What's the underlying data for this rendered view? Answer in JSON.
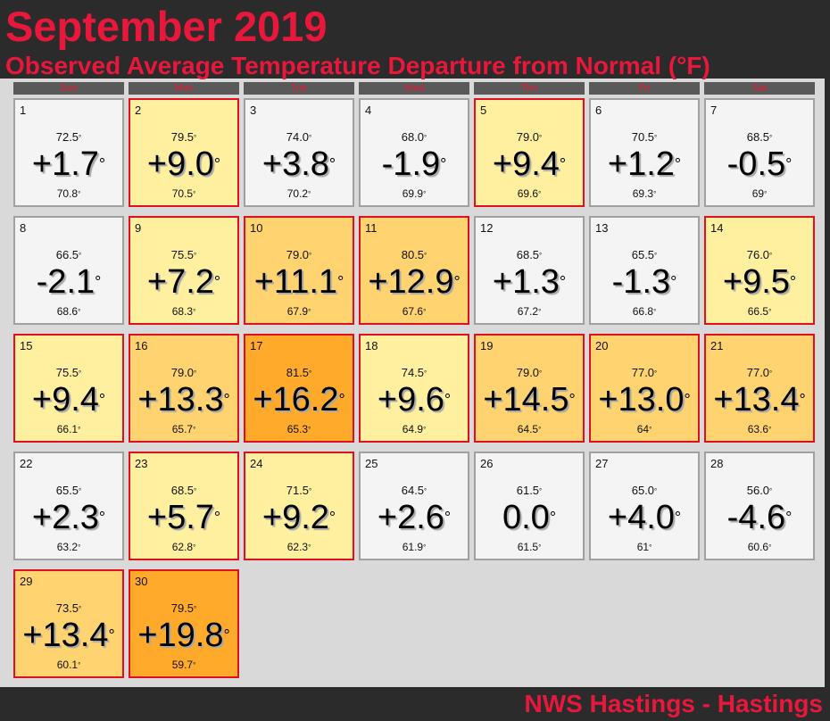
{
  "header": {
    "title": "September 2019",
    "subtitle": "Observed Average Temperature Departure from Normal (°F)"
  },
  "degree_symbol": "°",
  "weekdays": [
    "Sun",
    "Mon",
    "Tue",
    "Wed",
    "Thu",
    "Fri",
    "Sat"
  ],
  "days": [
    {
      "day": "1",
      "observed": "72.5",
      "departure": "+1.7",
      "normal": "70.8",
      "color": "#f4f4f4",
      "border": "#a0a0a0"
    },
    {
      "day": "2",
      "observed": "79.5",
      "departure": "+9.0",
      "normal": "70.5",
      "color": "#fff0a0",
      "border": "#e01020"
    },
    {
      "day": "3",
      "observed": "74.0",
      "departure": "+3.8",
      "normal": "70.2",
      "color": "#f4f4f4",
      "border": "#a0a0a0"
    },
    {
      "day": "4",
      "observed": "68.0",
      "departure": "-1.9",
      "normal": "69.9",
      "color": "#f4f4f4",
      "border": "#a0a0a0"
    },
    {
      "day": "5",
      "observed": "79.0",
      "departure": "+9.4",
      "normal": "69.6",
      "color": "#fff0a0",
      "border": "#e01020"
    },
    {
      "day": "6",
      "observed": "70.5",
      "departure": "+1.2",
      "normal": "69.3",
      "color": "#f4f4f4",
      "border": "#a0a0a0"
    },
    {
      "day": "7",
      "observed": "68.5",
      "departure": "-0.5",
      "normal": "69",
      "color": "#f4f4f4",
      "border": "#a0a0a0"
    },
    {
      "day": "8",
      "observed": "66.5",
      "departure": "-2.1",
      "normal": "68.6",
      "color": "#f4f4f4",
      "border": "#a0a0a0"
    },
    {
      "day": "9",
      "observed": "75.5",
      "departure": "+7.2",
      "normal": "68.3",
      "color": "#fff0a0",
      "border": "#e01020"
    },
    {
      "day": "10",
      "observed": "79.0",
      "departure": "+11.1",
      "normal": "67.9",
      "color": "#ffd470",
      "border": "#e01020"
    },
    {
      "day": "11",
      "observed": "80.5",
      "departure": "+12.9",
      "normal": "67.6",
      "color": "#ffd470",
      "border": "#e01020"
    },
    {
      "day": "12",
      "observed": "68.5",
      "departure": "+1.3",
      "normal": "67.2",
      "color": "#f4f4f4",
      "border": "#a0a0a0"
    },
    {
      "day": "13",
      "observed": "65.5",
      "departure": "-1.3",
      "normal": "66.8",
      "color": "#f4f4f4",
      "border": "#a0a0a0"
    },
    {
      "day": "14",
      "observed": "76.0",
      "departure": "+9.5",
      "normal": "66.5",
      "color": "#fff0a0",
      "border": "#e01020"
    },
    {
      "day": "15",
      "observed": "75.5",
      "departure": "+9.4",
      "normal": "66.1",
      "color": "#fff0a0",
      "border": "#e01020"
    },
    {
      "day": "16",
      "observed": "79.0",
      "departure": "+13.3",
      "normal": "65.7",
      "color": "#ffd470",
      "border": "#e01020"
    },
    {
      "day": "17",
      "observed": "81.5",
      "departure": "+16.2",
      "normal": "65.3",
      "color": "#ffaa2a",
      "border": "#e01020"
    },
    {
      "day": "18",
      "observed": "74.5",
      "departure": "+9.6",
      "normal": "64.9",
      "color": "#fff0a0",
      "border": "#e01020"
    },
    {
      "day": "19",
      "observed": "79.0",
      "departure": "+14.5",
      "normal": "64.5",
      "color": "#ffd470",
      "border": "#e01020"
    },
    {
      "day": "20",
      "observed": "77.0",
      "departure": "+13.0",
      "normal": "64",
      "color": "#ffd470",
      "border": "#e01020"
    },
    {
      "day": "21",
      "observed": "77.0",
      "departure": "+13.4",
      "normal": "63.6",
      "color": "#ffd470",
      "border": "#e01020"
    },
    {
      "day": "22",
      "observed": "65.5",
      "departure": "+2.3",
      "normal": "63.2",
      "color": "#f4f4f4",
      "border": "#a0a0a0"
    },
    {
      "day": "23",
      "observed": "68.5",
      "departure": "+5.7",
      "normal": "62.8",
      "color": "#fff0a0",
      "border": "#e01020"
    },
    {
      "day": "24",
      "observed": "71.5",
      "departure": "+9.2",
      "normal": "62.3",
      "color": "#fff0a0",
      "border": "#e01020"
    },
    {
      "day": "25",
      "observed": "64.5",
      "departure": "+2.6",
      "normal": "61.9",
      "color": "#f4f4f4",
      "border": "#a0a0a0"
    },
    {
      "day": "26",
      "observed": "61.5",
      "departure": "0.0",
      "normal": "61.5",
      "color": "#f4f4f4",
      "border": "#a0a0a0"
    },
    {
      "day": "27",
      "observed": "65.0",
      "departure": "+4.0",
      "normal": "61",
      "color": "#f4f4f4",
      "border": "#a0a0a0"
    },
    {
      "day": "28",
      "observed": "56.0",
      "departure": "-4.6",
      "normal": "60.6",
      "color": "#f4f4f4",
      "border": "#a0a0a0"
    },
    {
      "day": "29",
      "observed": "73.5",
      "departure": "+13.4",
      "normal": "60.1",
      "color": "#ffd470",
      "border": "#e01020"
    },
    {
      "day": "30",
      "observed": "79.5",
      "departure": "+19.8",
      "normal": "59.7",
      "color": "#ffaa2a",
      "border": "#e01020"
    }
  ],
  "footer": "NWS Hastings - Hastings"
}
